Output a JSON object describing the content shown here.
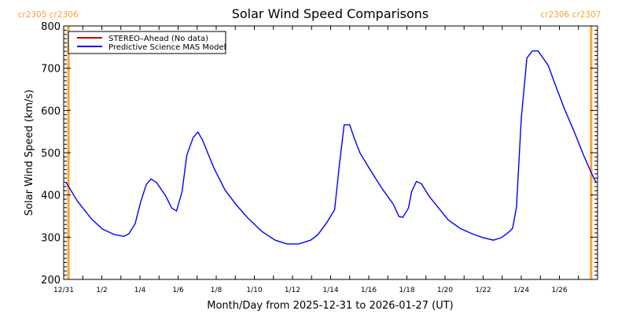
{
  "chart_data": {
    "type": "line",
    "title": "Solar Wind Speed Comparisons",
    "xlabel": "Month/Day from 2025-12-31 to 2026-01-27 (UT)",
    "ylabel": "Solar Wind Speed (km/s)",
    "xlim": [
      "2025-12-31T00:00",
      "2026-01-28T00:00"
    ],
    "ylim": [
      200,
      800
    ],
    "yticks": [
      200,
      300,
      400,
      500,
      600,
      700,
      800
    ],
    "xtick_labels": [
      "12/31",
      "1/2",
      "1/4",
      "1/6",
      "1/8",
      "1/10",
      "1/12",
      "1/14",
      "1/16",
      "1/18",
      "1/20",
      "1/22",
      "1/24",
      "1/26"
    ],
    "xtick_dates": [
      "2025-12-31",
      "2026-01-02",
      "2026-01-04",
      "2026-01-06",
      "2026-01-08",
      "2026-01-10",
      "2026-01-12",
      "2026-01-14",
      "2026-01-16",
      "2026-01-18",
      "2026-01-20",
      "2026-01-22",
      "2026-01-24",
      "2026-01-26"
    ],
    "grid": false,
    "legend_placement": "top-left",
    "carrington_markers": [
      {
        "label": "cr2305 cr2306",
        "time": "2025-12-31T06:00",
        "color": "#ffa030"
      },
      {
        "label": "cr2306 cr2307",
        "time": "2026-01-27T16:00",
        "color": "#ffa030"
      }
    ],
    "series": [
      {
        "name": "STEREO–Ahead (No data)",
        "color": "#c00000",
        "x": [],
        "values": []
      },
      {
        "name": "Predictive Science MAS Model",
        "color": "#0000ff",
        "x": [
          "2025-12-31T03:00",
          "2025-12-31T17:00",
          "2026-01-01T11:00",
          "2026-01-02T01:00",
          "2026-01-02T16:00",
          "2026-01-03T04:00",
          "2026-01-03T10:00",
          "2026-01-03T18:00",
          "2026-01-04T01:00",
          "2026-01-04T08:00",
          "2026-01-04T14:00",
          "2026-01-04T21:00",
          "2026-01-05T08:00",
          "2026-01-05T16:00",
          "2026-01-05T22:00",
          "2026-01-06T05:00",
          "2026-01-06T11:00",
          "2026-01-06T19:00",
          "2026-01-07T01:00",
          "2026-01-07T07:00",
          "2026-01-07T13:00",
          "2026-01-07T21:00",
          "2026-01-08T11:00",
          "2026-01-09T01:00",
          "2026-01-09T16:00",
          "2026-01-10T10:00",
          "2026-01-11T02:00",
          "2026-01-11T17:00",
          "2026-01-12T08:00",
          "2026-01-12T23:00",
          "2026-01-13T08:00",
          "2026-01-13T19:00",
          "2026-01-14T05:00",
          "2026-01-14T11:00",
          "2026-01-14T17:00",
          "2026-01-15T00:00",
          "2026-01-15T06:00",
          "2026-01-15T13:00",
          "2026-01-16T01:00",
          "2026-01-16T16:00",
          "2026-01-17T07:00",
          "2026-01-17T14:00",
          "2026-01-17T19:00",
          "2026-01-18T02:00",
          "2026-01-18T06:00",
          "2026-01-18T12:00",
          "2026-01-18T18:00",
          "2026-01-19T04:00",
          "2026-01-19T16:00",
          "2026-01-20T04:00",
          "2026-01-20T19:00",
          "2026-01-21T10:00",
          "2026-01-22T00:00",
          "2026-01-22T13:00",
          "2026-01-22T23:00",
          "2026-01-23T07:00",
          "2026-01-23T13:00",
          "2026-01-23T18:00",
          "2026-01-24T00:00",
          "2026-01-24T07:00",
          "2026-01-24T14:00",
          "2026-01-24T21:00",
          "2026-01-25T02:00",
          "2026-01-25T10:00",
          "2026-01-25T17:00",
          "2026-01-26T06:00",
          "2026-01-26T19:00",
          "2026-01-27T06:00",
          "2026-01-27T16:00",
          "2026-01-27T22:00"
        ],
        "values": [
          430,
          386,
          343,
          319,
          306,
          302,
          308,
          332,
          384,
          425,
          438,
          429,
          399,
          369,
          362,
          408,
          494,
          536,
          549,
          529,
          501,
          464,
          412,
          377,
          345,
          313,
          293,
          284,
          284,
          293,
          306,
          334,
          365,
          470,
          566,
          566,
          533,
          499,
          462,
          417,
          378,
          349,
          347,
          369,
          408,
          432,
          427,
          397,
          369,
          341,
          321,
          308,
          299,
          293,
          299,
          310,
          321,
          371,
          581,
          724,
          741,
          741,
          728,
          706,
          670,
          605,
          548,
          496,
          453,
          430
        ]
      }
    ]
  }
}
